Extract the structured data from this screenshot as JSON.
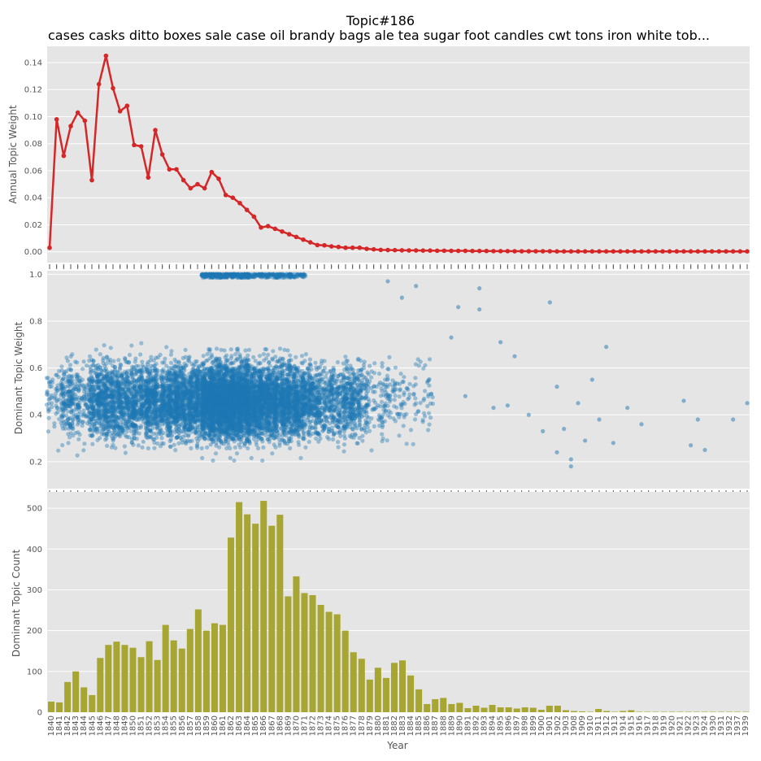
{
  "figure": {
    "title": "Topic#186",
    "subtitle": "cases casks ditto boxes sale case oil brandy bags ale tea sugar foot candles cwt tons iron white tob..."
  },
  "chart_data": [
    {
      "type": "line",
      "ylabel": "Annual Topic Weight",
      "xlabel": "",
      "ylim": [
        -0.008,
        0.152
      ],
      "yticks": [
        "0.00",
        "0.02",
        "0.04",
        "0.06",
        "0.08",
        "0.10",
        "0.12",
        "0.14"
      ],
      "grid": true,
      "color": "#d62728",
      "series": [
        {
          "x": [
            1840,
            1841,
            1842,
            1843,
            1844,
            1845,
            1846,
            1847,
            1848,
            1849,
            1850,
            1851,
            1852,
            1853,
            1854,
            1855,
            1856,
            1857,
            1858,
            1859,
            1860,
            1861,
            1862,
            1863,
            1864,
            1865,
            1866,
            1867,
            1868,
            1869,
            1870,
            1871,
            1872,
            1873,
            1874,
            1875,
            1876,
            1877,
            1878,
            1879,
            1880,
            1881,
            1882,
            1883,
            1884,
            1885,
            1886,
            1887,
            1888,
            1889,
            1890,
            1891,
            1892,
            1893,
            1894,
            1895,
            1896,
            1897,
            1898,
            1899,
            1900,
            1901,
            1902,
            1903,
            1904,
            1905,
            1906,
            1907,
            1908,
            1909,
            1910,
            1911,
            1912,
            1913,
            1914,
            1915,
            1916,
            1917,
            1918,
            1919,
            1920,
            1921,
            1922,
            1923,
            1924,
            1925,
            1926,
            1927,
            1928,
            1929,
            1930,
            1931,
            1932,
            1933,
            1934,
            1935,
            1936,
            1937,
            1938,
            1939
          ],
          "values": [
            0.003,
            0.098,
            0.071,
            0.093,
            0.103,
            0.097,
            0.053,
            0.124,
            0.145,
            0.121,
            0.104,
            0.108,
            0.079,
            0.078,
            0.055,
            0.09,
            0.072,
            0.061,
            0.061,
            0.053,
            0.047,
            0.05,
            0.047,
            0.059,
            0.054,
            0.042,
            0.04,
            0.036,
            0.031,
            0.026,
            0.018,
            0.019,
            0.017,
            0.015,
            0.013,
            0.011,
            0.009,
            0.007,
            0.005,
            0.0048,
            0.004,
            0.0036,
            0.003,
            0.003,
            0.003,
            0.0022,
            0.0018,
            0.0014,
            0.0013,
            0.0012,
            0.0011,
            0.001,
            0.001,
            0.0009,
            0.0009,
            0.0008,
            0.0008,
            0.0007,
            0.0007,
            0.0007,
            0.0006,
            0.0006,
            0.0006,
            0.0005,
            0.0005,
            0.0005,
            0.0004,
            0.0004,
            0.0004,
            0.0004,
            0.0004,
            0.0004,
            0.0003,
            0.0003,
            0.0003,
            0.0003,
            0.0003,
            0.0003,
            0.0003,
            0.0003,
            0.0003,
            0.0003,
            0.0003,
            0.0003,
            0.0003,
            0.0003,
            0.0003,
            0.0003,
            0.0003,
            0.0003,
            0.0003,
            0.0003,
            0.0003,
            0.0003,
            0.0003,
            0.0003,
            0.0003,
            0.0003,
            0.0003,
            0.0003
          ]
        }
      ]
    },
    {
      "type": "scatter",
      "ylabel": "Dominant Topic Weight",
      "xlabel": "",
      "ylim": [
        0.085,
        1.015
      ],
      "yticks": [
        "0.2",
        "0.4",
        "0.6",
        "0.8",
        "1.0"
      ],
      "grid": true,
      "color": "#1f77b4",
      "note_points": "dense cloud of points; count per year equals Dominant Topic Count",
      "sparse_points": [
        {
          "x": 1888,
          "y": 0.97
        },
        {
          "x": 1892,
          "y": 0.95
        },
        {
          "x": 1890,
          "y": 0.9
        },
        {
          "x": 1901,
          "y": 0.94
        },
        {
          "x": 1901,
          "y": 0.85
        },
        {
          "x": 1904,
          "y": 0.71
        },
        {
          "x": 1906,
          "y": 0.65
        },
        {
          "x": 1911,
          "y": 0.88
        },
        {
          "x": 1917,
          "y": 0.55
        },
        {
          "x": 1919,
          "y": 0.69
        },
        {
          "x": 1915,
          "y": 0.45
        },
        {
          "x": 1922,
          "y": 0.43
        },
        {
          "x": 1924,
          "y": 0.36
        },
        {
          "x": 1930,
          "y": 0.46
        },
        {
          "x": 1932,
          "y": 0.38
        },
        {
          "x": 1933,
          "y": 0.25
        },
        {
          "x": 1937,
          "y": 0.38
        },
        {
          "x": 1939,
          "y": 0.45
        },
        {
          "x": 1931,
          "y": 0.27
        },
        {
          "x": 1920,
          "y": 0.28
        },
        {
          "x": 1918,
          "y": 0.38
        },
        {
          "x": 1916,
          "y": 0.29
        },
        {
          "x": 1913,
          "y": 0.34
        },
        {
          "x": 1912,
          "y": 0.52
        },
        {
          "x": 1910,
          "y": 0.33
        },
        {
          "x": 1908,
          "y": 0.4
        },
        {
          "x": 1903,
          "y": 0.43
        },
        {
          "x": 1905,
          "y": 0.44
        },
        {
          "x": 1899,
          "y": 0.48
        },
        {
          "x": 1898,
          "y": 0.86
        },
        {
          "x": 1897,
          "y": 0.73
        },
        {
          "x": 1914,
          "y": 0.18
        },
        {
          "x": 1914,
          "y": 0.21
        },
        {
          "x": 1912,
          "y": 0.24
        }
      ]
    },
    {
      "type": "bar",
      "ylabel": "Dominant Topic Count",
      "xlabel": "Year",
      "ylim": [
        0,
        540
      ],
      "yticks": [
        "0",
        "100",
        "200",
        "300",
        "400",
        "500"
      ],
      "grid": true,
      "color": "#a8a632",
      "categories": [
        "1840",
        "1841",
        "1842",
        "1843",
        "1844",
        "1845",
        "1846",
        "1847",
        "1848",
        "1849",
        "1850",
        "1851",
        "1852",
        "1853",
        "1854",
        "1855",
        "1856",
        "1857",
        "1858",
        "1859",
        "1860",
        "1861",
        "1862",
        "1863",
        "1864",
        "1865",
        "1866",
        "1867",
        "1868",
        "1869",
        "1870",
        "1871",
        "1872",
        "1873",
        "1874",
        "1875",
        "1876",
        "1877",
        "1878",
        "1879",
        "1880",
        "1881",
        "1882",
        "1883",
        "1884",
        "1885",
        "1886",
        "1887",
        "1888",
        "1889",
        "1890",
        "1891",
        "1892",
        "1893",
        "1894",
        "1895",
        "1896",
        "1897",
        "1898",
        "1899",
        "1900",
        "1901",
        "1902",
        "1903",
        "1908",
        "1909",
        "1910",
        "1911",
        "1912",
        "1913",
        "1914",
        "1915",
        "1916",
        "1917",
        "1918",
        "1919",
        "1920",
        "1921",
        "1922",
        "1923",
        "1924",
        "1930",
        "1931",
        "1932",
        "1937",
        "1939"
      ],
      "values": [
        26,
        24,
        74,
        100,
        61,
        42,
        133,
        165,
        173,
        165,
        158,
        135,
        174,
        128,
        214,
        176,
        156,
        204,
        252,
        200,
        218,
        214,
        428,
        515,
        485,
        462,
        518,
        457,
        484,
        284,
        333,
        292,
        287,
        263,
        246,
        240,
        200,
        147,
        131,
        80,
        109,
        84,
        121,
        127,
        90,
        56,
        20,
        32,
        35,
        20,
        23,
        10,
        16,
        11,
        18,
        12,
        12,
        9,
        12,
        11,
        6,
        16,
        16,
        5,
        3,
        2,
        1,
        8,
        3,
        1,
        3,
        5,
        1,
        1,
        1,
        1,
        1,
        1,
        1,
        1,
        1,
        1,
        1,
        1,
        1,
        1
      ]
    }
  ]
}
